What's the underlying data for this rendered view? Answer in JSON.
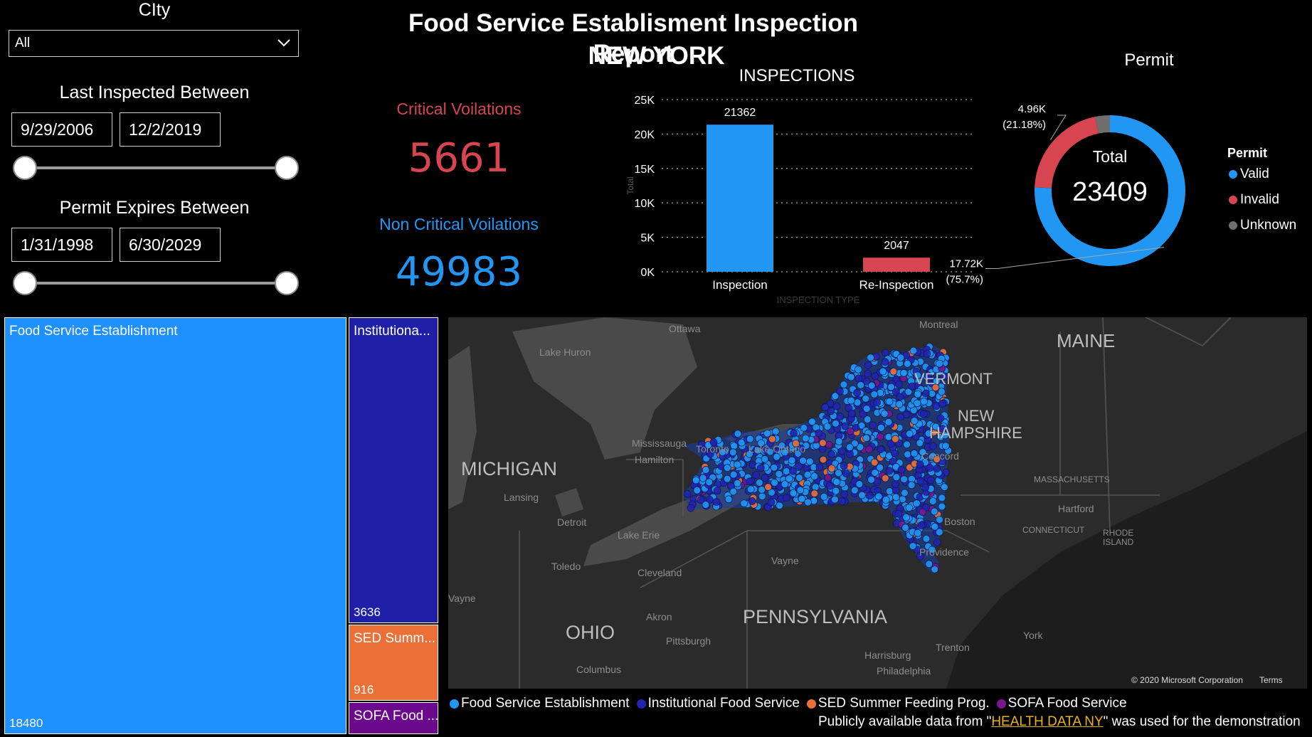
{
  "header": {
    "title_line1": "Food Service Establisment Inspection Report",
    "title_line2": "NEW YORK"
  },
  "city_slicer": {
    "label": "CIty",
    "selected": "All"
  },
  "last_inspected": {
    "label": "Last Inspected Between",
    "from": "9/29/2006",
    "to": "12/2/2019",
    "range": [
      0,
      1
    ]
  },
  "permit_expires": {
    "label": "Permit Expires Between",
    "from": "1/31/1998",
    "to": "6/30/2029",
    "range": [
      0,
      1
    ]
  },
  "kpi": {
    "critical_label": "Critical Voilations",
    "critical_value": "5661",
    "noncritical_label": "Non Critical Voilations",
    "noncritical_value": "49983",
    "critical_color": "#d64550",
    "noncritical_color": "#2196f3"
  },
  "chart_data": [
    {
      "type": "bar",
      "title": "INSPECTIONS",
      "xlabel": "INSPECTION TYPE",
      "ylabel": "Total",
      "categories": [
        "Inspection",
        "Re-Inspection"
      ],
      "values": [
        21362,
        2047
      ],
      "value_labels": [
        "21362",
        "2047"
      ],
      "colors": [
        "#2196f3",
        "#d64550"
      ],
      "ylim": [
        0,
        25000
      ],
      "yticks": [
        0,
        5000,
        10000,
        15000,
        20000,
        25000
      ],
      "ytick_labels": [
        "0K",
        "5K",
        "10K",
        "15K",
        "20K",
        "25K"
      ],
      "grid": true
    },
    {
      "type": "pie",
      "title": "Permit",
      "center_label": "Total",
      "center_value": "23409",
      "legend_title": "Permit",
      "legend_position": "right",
      "slices": [
        {
          "name": "Valid",
          "value": 17720,
          "color": "#2196f3",
          "label_value": "17.72K",
          "label_pct": "(75.7%)"
        },
        {
          "name": "Invalid",
          "value": 4960,
          "color": "#d64550",
          "label_value": "4.96K",
          "label_pct": "(21.18%)"
        },
        {
          "name": "Unknown",
          "value": 729,
          "color": "#6e6e6e",
          "label_value": "",
          "label_pct": ""
        }
      ]
    },
    {
      "type": "treemap",
      "items": [
        {
          "name": "Food Service Establishment",
          "value": 18480,
          "display_name": "Food Service Establishment",
          "color": "#1e90ff"
        },
        {
          "name": "Institutional Food Service",
          "value": 3636,
          "display_name": "Institutiona...",
          "color": "#1f1fa8"
        },
        {
          "name": "SED Summer Feeding Prog.",
          "value": 916,
          "display_name": "SED Summ...",
          "color": "#ea7038"
        },
        {
          "name": "SOFA Food Service",
          "value": 377,
          "display_name": "SOFA Food ...",
          "color": "#6b0a8c"
        }
      ]
    }
  ],
  "map": {
    "labels": {
      "maine": "MAINE",
      "vermont": "VERMONT",
      "new_hampshire_1": "NEW",
      "new_hampshire_2": "HAMPSHIRE",
      "michigan": "MICHIGAN",
      "ohio": "OHIO",
      "pennsylvania": "PENNSYLVANIA",
      "ottawa": "Ottawa",
      "montreal": "Montreal",
      "lake_huron": "Lake Huron",
      "mississauga": "Mississauga",
      "hamilton": "Hamilton",
      "toronto": "Toronto",
      "lake_ontario": "Lake Ontario",
      "lansing": "Lansing",
      "detroit": "Detroit",
      "lake_erie": "Lake Erie",
      "toledo": "Toledo",
      "cleveland": "Cleveland",
      "akron": "Akron",
      "pittsburgh": "Pittsburgh",
      "columbus": "Columbus",
      "wayne": "Vayne",
      "harrisburg": "Harrisburg",
      "philadelphia": "Philadelphia",
      "trenton": "Trenton",
      "york": "York",
      "concord": "Concord",
      "boston": "Boston",
      "massachusetts": "MASSACHUSETTS",
      "hartford": "Hartford",
      "providence": "Providence",
      "connecticut": "CONNECTICUT",
      "rhode": "RHODE",
      "island": "ISLAND"
    },
    "copyright": "© 2020 Microsoft Corporation",
    "terms": "Terms",
    "legend": [
      "Food Service Establishment",
      "Institutional Food Service",
      "SED Summer Feeding Prog.",
      "SOFA Food Service"
    ],
    "legend_colors": [
      "#2196f3",
      "#2323b0",
      "#ea7038",
      "#7a168f"
    ]
  },
  "footer": {
    "prefix": "Publicly available data from \"",
    "link": "HEALTH DATA NY",
    "suffix": "\" was used for the demonstration"
  }
}
